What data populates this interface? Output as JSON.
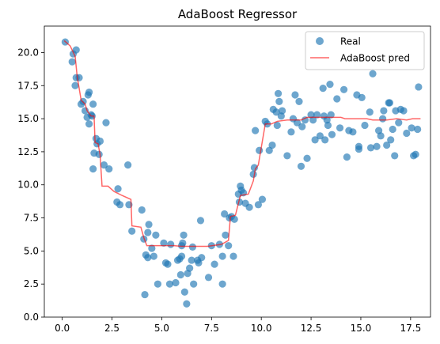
{
  "chart_data": {
    "type": "scatter",
    "title": "AdaBoost Regressor",
    "xlabel": "",
    "ylabel": "",
    "xlim": [
      -0.9,
      18.5
    ],
    "ylim": [
      0,
      22
    ],
    "xticks": [
      0.0,
      2.5,
      5.0,
      7.5,
      10.0,
      12.5,
      15.0,
      17.5
    ],
    "xtick_labels": [
      "0.0",
      "2.5",
      "5.0",
      "7.5",
      "10.0",
      "12.5",
      "15.0",
      "17.5"
    ],
    "yticks": [
      0.0,
      2.5,
      5.0,
      7.5,
      10.0,
      12.5,
      15.0,
      17.5,
      20.0
    ],
    "ytick_labels": [
      "0.0",
      "2.5",
      "5.0",
      "7.5",
      "10.0",
      "12.5",
      "15.0",
      "17.5",
      "20.0"
    ],
    "grid": false,
    "legend_position": "top-right",
    "series": [
      {
        "name": "Real",
        "kind": "scatter",
        "color": "#1f77b4",
        "points": [
          [
            0.15,
            20.8
          ],
          [
            0.5,
            19.3
          ],
          [
            0.55,
            19.9
          ],
          [
            0.7,
            20.2
          ],
          [
            0.7,
            18.1
          ],
          [
            0.65,
            17.5
          ],
          [
            0.85,
            18.1
          ],
          [
            0.95,
            16.1
          ],
          [
            1.05,
            16.3
          ],
          [
            1.15,
            15.6
          ],
          [
            1.25,
            15.1
          ],
          [
            1.3,
            16.8
          ],
          [
            1.35,
            17.0
          ],
          [
            1.35,
            14.6
          ],
          [
            1.45,
            15.3
          ],
          [
            1.5,
            15.2
          ],
          [
            1.55,
            16.1
          ],
          [
            1.55,
            11.2
          ],
          [
            1.6,
            12.4
          ],
          [
            1.7,
            13.5
          ],
          [
            1.75,
            13.1
          ],
          [
            1.85,
            12.3
          ],
          [
            1.9,
            13.3
          ],
          [
            2.1,
            11.5
          ],
          [
            2.2,
            14.7
          ],
          [
            2.35,
            11.2
          ],
          [
            2.75,
            8.7
          ],
          [
            2.8,
            9.7
          ],
          [
            2.9,
            8.5
          ],
          [
            3.3,
            11.5
          ],
          [
            3.35,
            8.5
          ],
          [
            3.5,
            6.5
          ],
          [
            4.0,
            8.1
          ],
          [
            4.1,
            5.9
          ],
          [
            4.15,
            1.7
          ],
          [
            4.2,
            4.7
          ],
          [
            4.3,
            6.4
          ],
          [
            4.3,
            4.5
          ],
          [
            4.35,
            7.0
          ],
          [
            4.5,
            5.2
          ],
          [
            4.6,
            4.6
          ],
          [
            4.7,
            6.2
          ],
          [
            4.8,
            2.5
          ],
          [
            5.1,
            5.6
          ],
          [
            5.2,
            4.1
          ],
          [
            5.3,
            4.0
          ],
          [
            5.4,
            2.5
          ],
          [
            5.45,
            5.5
          ],
          [
            5.7,
            2.6
          ],
          [
            5.8,
            4.3
          ],
          [
            5.9,
            4.4
          ],
          [
            5.95,
            3.2
          ],
          [
            6.0,
            5.4
          ],
          [
            6.0,
            4.6
          ],
          [
            6.05,
            5.6
          ],
          [
            6.1,
            6.2
          ],
          [
            6.15,
            1.9
          ],
          [
            6.25,
            1.0
          ],
          [
            6.3,
            3.3
          ],
          [
            6.4,
            3.7
          ],
          [
            6.5,
            4.3
          ],
          [
            6.55,
            5.3
          ],
          [
            6.6,
            2.5
          ],
          [
            6.8,
            4.3
          ],
          [
            6.85,
            4.1
          ],
          [
            6.95,
            7.3
          ],
          [
            7.0,
            4.5
          ],
          [
            7.35,
            3.0
          ],
          [
            7.5,
            5.4
          ],
          [
            7.65,
            4.0
          ],
          [
            7.9,
            5.5
          ],
          [
            8.05,
            2.5
          ],
          [
            8.05,
            4.6
          ],
          [
            8.15,
            7.8
          ],
          [
            8.2,
            6.2
          ],
          [
            8.35,
            5.4
          ],
          [
            8.4,
            7.5
          ],
          [
            8.5,
            7.6
          ],
          [
            8.6,
            4.6
          ],
          [
            8.65,
            7.4
          ],
          [
            8.85,
            9.3
          ],
          [
            8.9,
            8.7
          ],
          [
            8.95,
            9.9
          ],
          [
            9.0,
            9.6
          ],
          [
            9.1,
            9.4
          ],
          [
            9.2,
            8.6
          ],
          [
            9.4,
            8.3
          ],
          [
            9.6,
            10.8
          ],
          [
            9.65,
            11.3
          ],
          [
            9.7,
            14.1
          ],
          [
            9.85,
            8.5
          ],
          [
            9.9,
            12.6
          ],
          [
            10.05,
            8.9
          ],
          [
            10.2,
            14.8
          ],
          [
            10.3,
            14.6
          ],
          [
            10.4,
            12.6
          ],
          [
            10.55,
            13.0
          ],
          [
            10.6,
            15.7
          ],
          [
            10.75,
            15.5
          ],
          [
            10.8,
            14.5
          ],
          [
            10.85,
            16.9
          ],
          [
            10.9,
            16.3
          ],
          [
            11.0,
            15.2
          ],
          [
            11.05,
            15.6
          ],
          [
            11.3,
            12.2
          ],
          [
            11.5,
            14.0
          ],
          [
            11.6,
            15.0
          ],
          [
            11.7,
            16.8
          ],
          [
            11.8,
            14.7
          ],
          [
            11.9,
            16.3
          ],
          [
            12.0,
            11.4
          ],
          [
            12.05,
            14.4
          ],
          [
            12.2,
            14.9
          ],
          [
            12.3,
            12.0
          ],
          [
            12.5,
            15.3
          ],
          [
            12.6,
            14.9
          ],
          [
            12.7,
            13.4
          ],
          [
            12.8,
            15.3
          ],
          [
            12.95,
            13.7
          ],
          [
            13.1,
            17.3
          ],
          [
            13.15,
            15.2
          ],
          [
            13.2,
            13.4
          ],
          [
            13.3,
            14.9
          ],
          [
            13.35,
            14.5
          ],
          [
            13.45,
            17.6
          ],
          [
            13.5,
            15.3
          ],
          [
            13.55,
            13.8
          ],
          [
            13.8,
            16.5
          ],
          [
            13.95,
            14.3
          ],
          [
            14.15,
            17.2
          ],
          [
            14.3,
            12.1
          ],
          [
            14.4,
            14.1
          ],
          [
            14.6,
            14.0
          ],
          [
            14.8,
            16.8
          ],
          [
            14.9,
            12.7
          ],
          [
            14.9,
            12.9
          ],
          [
            15.05,
            16.6
          ],
          [
            15.2,
            14.5
          ],
          [
            15.45,
            15.5
          ],
          [
            15.5,
            12.8
          ],
          [
            15.6,
            18.4
          ],
          [
            15.8,
            12.9
          ],
          [
            15.9,
            14.1
          ],
          [
            16.0,
            13.7
          ],
          [
            16.1,
            15.0
          ],
          [
            16.15,
            15.6
          ],
          [
            16.3,
            13.0
          ],
          [
            16.4,
            16.2
          ],
          [
            16.45,
            16.2
          ],
          [
            16.5,
            13.4
          ],
          [
            16.6,
            14.2
          ],
          [
            16.7,
            12.2
          ],
          [
            16.75,
            15.6
          ],
          [
            16.9,
            14.7
          ],
          [
            17.0,
            15.7
          ],
          [
            17.15,
            15.6
          ],
          [
            17.3,
            13.9
          ],
          [
            17.55,
            14.3
          ],
          [
            17.65,
            12.2
          ],
          [
            17.75,
            12.3
          ],
          [
            17.85,
            14.2
          ],
          [
            17.9,
            17.4
          ]
        ]
      },
      {
        "name": "AdaBoost pred",
        "kind": "line",
        "color": "#ff0000",
        "points": [
          [
            0.1,
            20.9
          ],
          [
            0.4,
            20.5
          ],
          [
            0.65,
            19.7
          ],
          [
            0.75,
            18.2
          ],
          [
            0.95,
            16.4
          ],
          [
            1.15,
            16.1
          ],
          [
            1.25,
            15.6
          ],
          [
            1.45,
            15.2
          ],
          [
            1.6,
            15.2
          ],
          [
            1.65,
            13.2
          ],
          [
            1.8,
            13.1
          ],
          [
            1.9,
            12.3
          ],
          [
            2.0,
            9.9
          ],
          [
            2.3,
            9.9
          ],
          [
            2.6,
            9.5
          ],
          [
            3.0,
            9.2
          ],
          [
            3.45,
            8.9
          ],
          [
            3.5,
            6.9
          ],
          [
            3.95,
            6.8
          ],
          [
            4.1,
            6.0
          ],
          [
            4.25,
            5.4
          ],
          [
            5.6,
            5.4
          ],
          [
            6.0,
            5.35
          ],
          [
            7.3,
            5.35
          ],
          [
            8.0,
            5.5
          ],
          [
            8.35,
            5.8
          ],
          [
            8.45,
            7.6
          ],
          [
            8.7,
            7.7
          ],
          [
            8.95,
            9.2
          ],
          [
            9.35,
            9.3
          ],
          [
            9.6,
            10.3
          ],
          [
            9.7,
            11.2
          ],
          [
            9.85,
            11.5
          ],
          [
            10.2,
            14.6
          ],
          [
            10.5,
            14.6
          ],
          [
            10.8,
            14.8
          ],
          [
            11.3,
            14.9
          ],
          [
            12.0,
            14.9
          ],
          [
            12.3,
            15.1
          ],
          [
            13.4,
            15.1
          ],
          [
            14.0,
            15.1
          ],
          [
            14.2,
            15.0
          ],
          [
            15.3,
            15.0
          ],
          [
            15.6,
            14.9
          ],
          [
            16.3,
            14.9
          ],
          [
            16.8,
            15.0
          ],
          [
            17.3,
            14.9
          ],
          [
            17.6,
            15.0
          ],
          [
            18.0,
            15.0
          ]
        ]
      }
    ]
  }
}
